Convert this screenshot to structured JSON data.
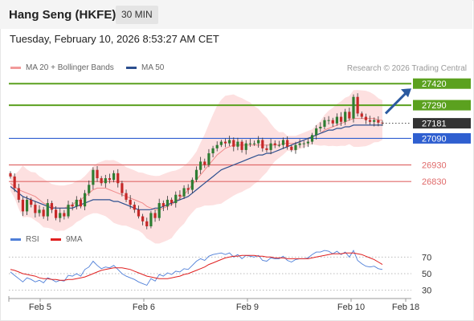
{
  "header": {
    "title": "Hang Seng (HKFE)",
    "interval": "30 MIN"
  },
  "datetime": "Tuesday, February 10, 2026 8:53:27 AM CET",
  "legend": [
    {
      "label": "MA 20 + Bollinger Bands",
      "color": "#f29a9a"
    },
    {
      "label": "MA 50",
      "color": "#2c4f8f"
    }
  ],
  "credit": "Research © 2026 Trading Central",
  "chart_data": [
    {
      "type": "candlestick",
      "title": "",
      "ylim": [
        26560,
        27450
      ],
      "xlim": [
        "Feb 4 19:00",
        "Feb 18 12:00"
      ],
      "x_ticks": [
        "Feb 5",
        "Feb 6",
        "Feb 9",
        "Feb 10",
        "Feb 18"
      ],
      "last_price": 27181,
      "levels": [
        {
          "value": 27420,
          "label": "27420",
          "kind": "resistance",
          "color": "#5ba11f"
        },
        {
          "value": 27290,
          "label": "27290",
          "kind": "resistance",
          "color": "#5ba11f"
        },
        {
          "value": 27090,
          "label": "27090",
          "kind": "pivot",
          "color": "#2f5fd0"
        },
        {
          "value": 26930,
          "label": "26930",
          "kind": "support",
          "color": "#e06a6a"
        },
        {
          "value": 26830,
          "label": "26830",
          "kind": "support",
          "color": "#e06a6a"
        }
      ],
      "last_label": "27181",
      "closes": [
        26860,
        26790,
        26720,
        26650,
        26720,
        26690,
        26640,
        26660,
        26620,
        26700,
        26660,
        26610,
        26640,
        26620,
        26690,
        26680,
        26720,
        26680,
        26760,
        26810,
        26900,
        26850,
        26820,
        26850,
        26840,
        26880,
        26820,
        26760,
        26720,
        26690,
        26660,
        26620,
        26590,
        26560,
        26640,
        26610,
        26700,
        26680,
        26720,
        26700,
        26750,
        26740,
        26790,
        26780,
        26840,
        26900,
        26950,
        26930,
        27000,
        27030,
        27050,
        27070,
        27060,
        27080,
        27040,
        27070,
        27020,
        27060,
        27060,
        27060,
        27080,
        27030,
        27020,
        27060,
        27050,
        27050,
        27080,
        27040,
        27020,
        27050,
        27060,
        27060,
        27070,
        27110,
        27150,
        27160,
        27200,
        27200,
        27180,
        27220,
        27190,
        27250,
        27210,
        27340,
        27240,
        27220,
        27200,
        27190,
        27200,
        27185,
        27181
      ],
      "series": [
        {
          "name": "MA 20",
          "values": [
            26820,
            26800,
            26780,
            26770,
            26760,
            26750,
            26740,
            26720,
            26700,
            26690,
            26680,
            26670,
            26670,
            26670,
            26680,
            26690,
            26710,
            26720,
            26740,
            26760,
            26780,
            26790,
            26790,
            26790,
            26780,
            26770,
            26760,
            26750,
            26740,
            26730,
            26720,
            26710,
            26700,
            26680,
            26670,
            26660,
            26660,
            26670,
            26680,
            26690,
            26710,
            26730,
            26750,
            26780,
            26810,
            26840,
            26870,
            26900,
            26930,
            26960,
            26990,
            27010,
            27030,
            27040,
            27050,
            27050,
            27050,
            27050,
            27050,
            27050,
            27050,
            27050,
            27050,
            27050,
            27050,
            27050,
            27060,
            27060,
            27060,
            27060,
            27070,
            27080,
            27090,
            27100,
            27110,
            27120,
            27140,
            27150,
            27160,
            27170,
            27180,
            27190,
            27200,
            27210,
            27210,
            27210,
            27210,
            27210,
            27210,
            27200,
            27200
          ]
        },
        {
          "name": "MA 50",
          "values": [
            26800,
            26780,
            26760,
            26740,
            26730,
            26720,
            26710,
            26700,
            26690,
            26680,
            26670,
            26670,
            26670,
            26670,
            26670,
            26670,
            26680,
            26690,
            26700,
            26710,
            26720,
            26720,
            26720,
            26720,
            26720,
            26710,
            26710,
            26700,
            26690,
            26680,
            26670,
            26660,
            26660,
            26660,
            26660,
            26670,
            26670,
            26680,
            26690,
            26700,
            26710,
            26720,
            26730,
            26740,
            26760,
            26780,
            26800,
            26820,
            26840,
            26860,
            26880,
            26900,
            26910,
            26920,
            26930,
            26940,
            26950,
            26960,
            26970,
            26980,
            26990,
            26990,
            27000,
            27000,
            27010,
            27020,
            27030,
            27040,
            27050,
            27060,
            27070,
            27080,
            27090,
            27100,
            27110,
            27120,
            27130,
            27140,
            27140,
            27150,
            27150,
            27160,
            27160,
            27170,
            27170,
            27170,
            27170,
            27170,
            27170,
            27170,
            27170
          ]
        }
      ]
    },
    {
      "type": "line",
      "title": "",
      "ylim": [
        20,
        80
      ],
      "y_ticks": [
        70,
        50,
        30
      ],
      "series": [
        {
          "name": "RSI",
          "color": "#4f7fd8",
          "values": [
            52,
            48,
            44,
            40,
            45,
            43,
            40,
            42,
            39,
            45,
            43,
            40,
            42,
            41,
            48,
            47,
            50,
            47,
            55,
            58,
            65,
            60,
            56,
            58,
            57,
            60,
            55,
            50,
            47,
            45,
            43,
            40,
            38,
            36,
            44,
            41,
            49,
            47,
            51,
            49,
            53,
            52,
            56,
            55,
            60,
            65,
            68,
            66,
            71,
            73,
            74,
            75,
            73,
            75,
            70,
            73,
            68,
            72,
            71,
            70,
            72,
            66,
            65,
            69,
            68,
            68,
            71,
            66,
            64,
            67,
            68,
            68,
            69,
            73,
            76,
            76,
            78,
            77,
            74,
            77,
            73,
            76,
            70,
            78,
            66,
            62,
            59,
            58,
            59,
            56,
            55
          ]
        },
        {
          "name": "9MA",
          "color": "#e02020",
          "values": [
            55,
            54,
            52,
            50,
            49,
            48,
            47,
            45,
            44,
            44,
            43,
            43,
            42,
            42,
            43,
            43,
            44,
            45,
            46,
            48,
            50,
            52,
            54,
            55,
            56,
            57,
            57,
            57,
            56,
            55,
            53,
            51,
            49,
            47,
            46,
            45,
            44,
            44,
            44,
            45,
            46,
            47,
            49,
            50,
            52,
            54,
            56,
            58,
            61,
            63,
            65,
            67,
            69,
            70,
            71,
            71,
            72,
            72,
            72,
            72,
            71,
            71,
            70,
            70,
            69,
            69,
            69,
            68,
            68,
            68,
            68,
            68,
            68,
            69,
            70,
            71,
            72,
            73,
            74,
            74,
            74,
            75,
            75,
            75,
            74,
            73,
            71,
            69,
            67,
            64,
            61
          ]
        }
      ]
    }
  ]
}
